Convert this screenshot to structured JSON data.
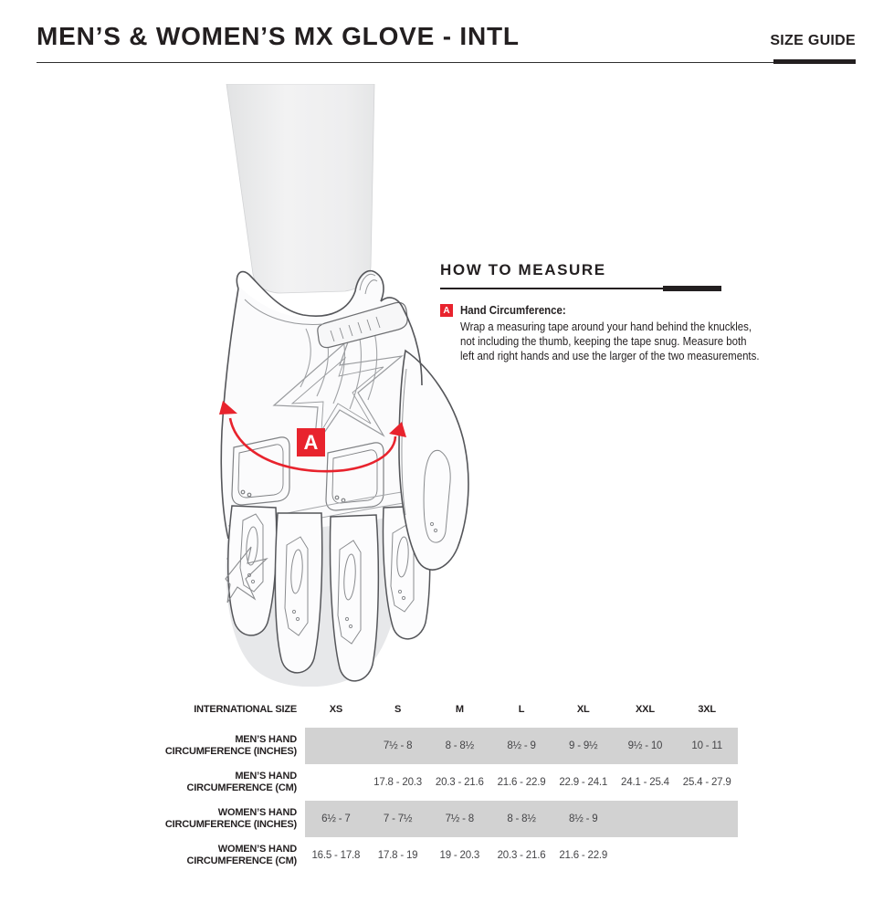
{
  "header": {
    "title": "MEN’S & WOMEN’S MX GLOVE - INTL",
    "size_guide_label": "SIZE GUIDE"
  },
  "figure": {
    "marker_label": "A",
    "accent_color": "#e8232d"
  },
  "measure": {
    "heading": "HOW TO MEASURE",
    "marker": "A",
    "label": "Hand Circumference:",
    "body": "Wrap a measuring tape around your hand behind the knuckles,\nnot including the thumb, keeping the tape snug. Measure both\nleft and right hands and use the larger of the two measurements."
  },
  "table": {
    "header_label": "INTERNATIONAL SIZE",
    "columns": [
      "XS",
      "S",
      "M",
      "L",
      "XL",
      "XXL",
      "3XL"
    ],
    "shaded_row_color": "#d2d2d2",
    "rows": [
      {
        "label": "MEN’S HAND\nCIRCUMFERENCE (INCHES)",
        "shaded": true,
        "values": [
          "",
          "7½ - 8",
          "8 - 8½",
          "8½ - 9",
          "9 - 9½",
          "9½ - 10",
          "10 - 11"
        ]
      },
      {
        "label": "MEN’S HAND\nCIRCUMFERENCE (CM)",
        "shaded": false,
        "values": [
          "",
          "17.8 - 20.3",
          "20.3 - 21.6",
          "21.6 - 22.9",
          "22.9 - 24.1",
          "24.1 - 25.4",
          "25.4 - 27.9"
        ]
      },
      {
        "label": "WOMEN’S HAND\nCIRCUMFERENCE (INCHES)",
        "shaded": true,
        "values": [
          "6½ - 7",
          "7 - 7½",
          "7½ - 8",
          "8 - 8½",
          "8½ - 9",
          "",
          ""
        ]
      },
      {
        "label": "WOMEN’S HAND\nCIRCUMFERENCE (CM)",
        "shaded": false,
        "values": [
          "16.5 - 17.8",
          "17.8 - 19",
          "19 - 20.3",
          "20.3 - 21.6",
          "21.6 - 22.9",
          "",
          ""
        ]
      }
    ]
  }
}
